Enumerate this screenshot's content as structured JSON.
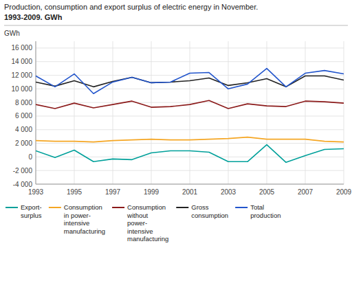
{
  "chart_data": {
    "type": "line",
    "title": "Production, consumption and export surplus of electric energy in November.",
    "subtitle": "1993-2009. GWh",
    "ylabel": "GWh",
    "x": [
      1993,
      1994,
      1995,
      1996,
      1997,
      1998,
      1999,
      2000,
      2001,
      2002,
      2003,
      2004,
      2005,
      2006,
      2007,
      2008,
      2009
    ],
    "series": [
      {
        "name": "Export-\nsurplus",
        "color": "#00a09a",
        "values": [
          900,
          -100,
          1000,
          -700,
          -300,
          -400,
          600,
          900,
          900,
          700,
          -700,
          -700,
          1800,
          -800,
          200,
          1100,
          1200
        ]
      },
      {
        "name": "Consumption\nin power-\nintensive\nmanufacturing",
        "color": "#f5a623",
        "values": [
          2400,
          2300,
          2300,
          2200,
          2400,
          2500,
          2600,
          2500,
          2500,
          2600,
          2700,
          2900,
          2600,
          2600,
          2600,
          2300,
          2200
        ]
      },
      {
        "name": "Consumption\nwithout\npower-\nintensive\nmanufacturing",
        "color": "#8b1a1a",
        "values": [
          7700,
          7100,
          7900,
          7200,
          7700,
          8200,
          7300,
          7400,
          7700,
          8300,
          7100,
          7800,
          7500,
          7400,
          8200,
          8100,
          7900
        ]
      },
      {
        "name": "Gross\nconsumption",
        "color": "#222222",
        "values": [
          11000,
          10400,
          11200,
          10300,
          11100,
          11700,
          10900,
          11000,
          11200,
          11600,
          10500,
          10900,
          11500,
          10300,
          11900,
          11900,
          11300
        ]
      },
      {
        "name": "Total\nproduction",
        "color": "#2255cc",
        "values": [
          11900,
          10300,
          12200,
          9300,
          11000,
          11700,
          10900,
          11000,
          12300,
          12400,
          10000,
          10700,
          13000,
          10300,
          12300,
          12700,
          12200
        ]
      }
    ],
    "xlim": [
      1993,
      2009
    ],
    "xticks": [
      1993,
      1995,
      1997,
      1999,
      2001,
      2003,
      2005,
      2007,
      2009
    ],
    "ylim": [
      -4000,
      17000
    ],
    "yticks": [
      {
        "value": -4000,
        "label": "-4 000"
      },
      {
        "value": -2000,
        "label": "-2 000"
      },
      0,
      {
        "value": 2000,
        "label": "2 000"
      },
      {
        "value": 4000,
        "label": "4 000"
      },
      {
        "value": 6000,
        "label": "6 000"
      },
      {
        "value": 8000,
        "label": "8 000"
      },
      {
        "value": 10000,
        "label": "10 000"
      },
      {
        "value": 12000,
        "label": "12 000"
      },
      {
        "value": 14000,
        "label": "14 000"
      },
      {
        "value": 16000,
        "label": "16 000"
      }
    ],
    "grid": true,
    "legend": "bottom"
  }
}
